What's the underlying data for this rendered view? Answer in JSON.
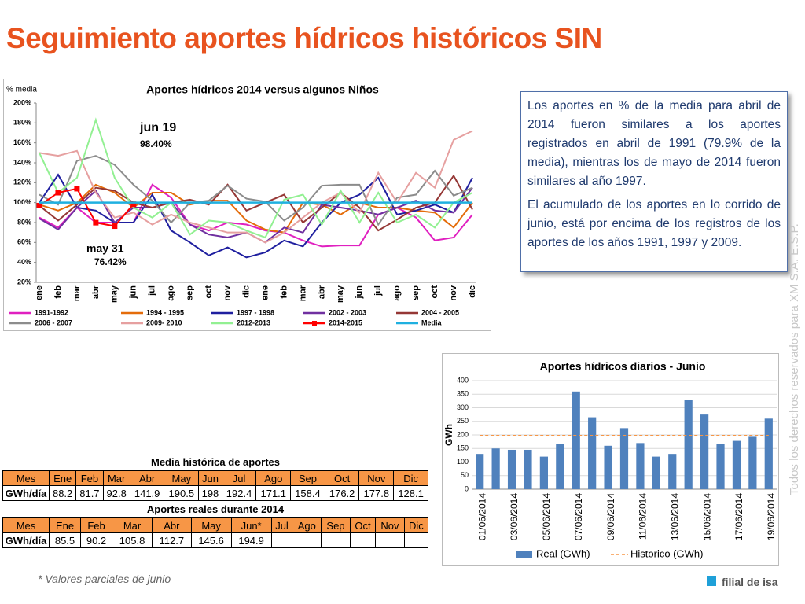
{
  "title": "Seguimiento aportes hídricos históricos SIN",
  "chart_data": [
    {
      "type": "line",
      "title": "Aportes hídricos 2014 versus algunos Niños",
      "y_label": "% media",
      "categories": [
        "ene",
        "feb",
        "mar",
        "abr",
        "may",
        "jun",
        "jul",
        "ago",
        "sep",
        "oct",
        "nov",
        "dic",
        "ene",
        "feb",
        "mar",
        "abr",
        "may",
        "jun",
        "jul",
        "ago",
        "sep",
        "oct",
        "nov",
        "dic"
      ],
      "ylim": [
        20,
        200
      ],
      "yticks": [
        {
          "value": 20,
          "label": "20%"
        },
        {
          "value": 40,
          "label": "40%"
        },
        {
          "value": 60,
          "label": "60%"
        },
        {
          "value": 80,
          "label": "80%"
        },
        {
          "value": 100,
          "label": "100%"
        },
        {
          "value": 120,
          "label": "120%"
        },
        {
          "value": 140,
          "label": "140%"
        },
        {
          "value": 160,
          "label": "160%"
        },
        {
          "value": 180,
          "label": "180%"
        },
        {
          "value": 200,
          "label": "200%"
        }
      ],
      "grid": false,
      "series": [
        {
          "name": "1991-1992",
          "color": "#e020c0",
          "values": [
            85,
            75,
            95,
            80,
            80,
            80,
            118,
            105,
            78,
            72,
            80,
            78,
            72,
            70,
            62,
            56,
            57,
            57,
            88,
            95,
            85,
            62,
            65,
            88
          ]
        },
        {
          "name": "1994 - 1995",
          "color": "#e46c0a",
          "values": [
            98,
            92,
            100,
            118,
            110,
            95,
            110,
            110,
            98,
            102,
            102,
            82,
            73,
            70,
            100,
            98,
            88,
            100,
            95,
            95,
            92,
            90,
            75,
            100
          ]
        },
        {
          "name": "1997 - 1998",
          "color": "#1f1f9f",
          "values": [
            100,
            128,
            95,
            92,
            80,
            80,
            108,
            72,
            60,
            47,
            55,
            45,
            50,
            62,
            56,
            80,
            100,
            108,
            125,
            88,
            92,
            98,
            90,
            125
          ]
        },
        {
          "name": "2002 - 2003",
          "color": "#7030a0",
          "values": [
            84,
            73,
            95,
            112,
            80,
            95,
            95,
            100,
            78,
            68,
            65,
            70,
            60,
            75,
            70,
            98,
            95,
            92,
            88,
            95,
            102,
            92,
            90,
            115
          ]
        },
        {
          "name": "2004 - 2005",
          "color": "#953735",
          "values": [
            97,
            82,
            98,
            115,
            112,
            100,
            95,
            100,
            103,
            98,
            118,
            92,
            100,
            108,
            80,
            95,
            110,
            95,
            72,
            83,
            95,
            100,
            127,
            93
          ]
        },
        {
          "name": "2006 - 2007",
          "color": "#8c8c8c",
          "values": [
            108,
            98,
            142,
            147,
            138,
            118,
            102,
            80,
            100,
            102,
            117,
            104,
            101,
            82,
            95,
            117,
            118,
            118,
            78,
            105,
            108,
            132,
            107,
            115
          ]
        },
        {
          "name": "2009- 2010",
          "color": "#e6a0a0",
          "values": [
            150,
            147,
            152,
            110,
            85,
            90,
            78,
            88,
            80,
            75,
            70,
            70,
            60,
            70,
            85,
            100,
            110,
            90,
            130,
            100,
            130,
            115,
            163,
            172
          ]
        },
        {
          "name": "2012-2013",
          "color": "#92f092",
          "values": [
            150,
            110,
            125,
            183,
            125,
            95,
            85,
            100,
            68,
            82,
            80,
            72,
            65,
            103,
            108,
            78,
            112,
            80,
            110,
            80,
            88,
            75,
            100,
            110
          ]
        },
        {
          "name": "2014-2015",
          "color": "#ff0000",
          "marker": "square",
          "values": [
            97,
            110,
            114,
            79.9,
            76.42,
            98.4,
            null,
            null,
            null,
            null,
            null,
            null,
            null,
            null,
            null,
            null,
            null,
            null,
            null,
            null,
            null,
            null,
            null,
            null
          ]
        },
        {
          "name": "Media",
          "color": "#1fb0e0",
          "values": [
            100,
            100,
            100,
            100,
            100,
            100,
            100,
            100,
            100,
            100,
            100,
            100,
            100,
            100,
            100,
            100,
            100,
            100,
            100,
            100,
            100,
            100,
            100,
            100
          ]
        }
      ],
      "annotations": [
        "jun 19",
        "98.40%",
        "may 31",
        "76.42%"
      ]
    },
    {
      "type": "bar",
      "title": "Aportes hídricos diarios - Junio",
      "y_label": "GWh",
      "categories": [
        "01/06/2014",
        null,
        "03/06/2014",
        null,
        "05/06/2014",
        null,
        "07/06/2014",
        null,
        "09/06/2014",
        null,
        "11/06/2014",
        null,
        "13/06/2014",
        null,
        "15/06/2014",
        null,
        "17/06/2014",
        null,
        "19/06/2014"
      ],
      "ylim": [
        0,
        400
      ],
      "yticks": [
        0,
        50,
        100,
        150,
        200,
        250,
        300,
        350,
        400
      ],
      "grid": true,
      "series": [
        {
          "name": "Real (GWh)",
          "type": "bar",
          "color": "#4f81bd",
          "values": [
            130,
            150,
            145,
            145,
            120,
            168,
            360,
            265,
            160,
            225,
            170,
            120,
            130,
            330,
            275,
            168,
            178,
            193,
            260
          ]
        },
        {
          "name": "Historico (GWh)",
          "type": "line",
          "dash": true,
          "color": "#f79646",
          "values": [
            198,
            198,
            198,
            198,
            198,
            198,
            198,
            198,
            198,
            198,
            198,
            198,
            198,
            198,
            198,
            198,
            198,
            198,
            198
          ]
        }
      ]
    }
  ],
  "text_box": [
    "Los aportes en % de la media para abril de 2014 fueron similares a los aportes registrados en abril de 1991 (79.9% de la media), mientras los de mayo de 2014 fueron similares al año 1997.",
    "El acumulado de los aportes en lo corrido de junio, está por encima de los registros de los aportes de los años 1991, 1997 y 2009."
  ],
  "tables": [
    {
      "title": "Media histórica de aportes",
      "header": [
        "Mes",
        "Ene",
        "Feb",
        "Mar",
        "Abr",
        "May",
        "Jun",
        "Jul",
        "Ago",
        "Sep",
        "Oct",
        "Nov",
        "Dic"
      ],
      "rows": [
        [
          "GWh/día",
          88.2,
          81.7,
          92.8,
          141.9,
          190.5,
          198.0,
          192.4,
          171.1,
          158.4,
          176.2,
          177.8,
          128.1
        ]
      ]
    },
    {
      "title": "Aportes reales durante 2014",
      "header": [
        "Mes",
        "Ene",
        "Feb",
        "Mar",
        "Abr",
        "May",
        "Jun*",
        "Jul",
        "Ago",
        "Sep",
        "Oct",
        "Nov",
        "Dic"
      ],
      "rows": [
        [
          "GWh/día",
          85.5,
          90.2,
          105.8,
          112.7,
          145.6,
          194.9
        ]
      ]
    }
  ],
  "footnote": "* Valores parciales de junio",
  "side_text": "Todos los derechos reservados para XM S.A. E.S.P.",
  "footer": "filial de isa"
}
